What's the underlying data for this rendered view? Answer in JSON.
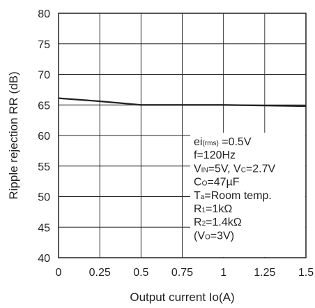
{
  "chart_data": {
    "type": "line",
    "title": "",
    "xlabel": "Output current Io(A)",
    "ylabel": "Ripple rejection RR (dB)",
    "xlim": [
      0,
      1.5
    ],
    "ylim": [
      40,
      80
    ],
    "x_ticks": [
      "0",
      "0.25",
      "0.5",
      "0.75",
      "1",
      "1.25",
      "1.5"
    ],
    "y_ticks": [
      "40",
      "45",
      "50",
      "55",
      "60",
      "65",
      "70",
      "75",
      "80"
    ],
    "grid": true,
    "legend": "none",
    "line_color": "#231f20",
    "series": [
      {
        "x": [
          0,
          0.25,
          0.5,
          0.75,
          1.0,
          1.25,
          1.5
        ],
        "y": [
          66.1,
          65.6,
          65.0,
          65.0,
          65.0,
          64.9,
          64.8
        ]
      }
    ],
    "annotations": [
      [
        {
          "t": "ei"
        },
        {
          "t": "(rms)",
          "sub": true
        },
        {
          "t": " =0.5V"
        }
      ],
      [
        {
          "t": "f=120Hz"
        }
      ],
      [
        {
          "t": "V"
        },
        {
          "t": "IN",
          "sub": true
        },
        {
          "t": "=5V, V"
        },
        {
          "t": "C",
          "sub": true
        },
        {
          "t": "=2.7V"
        }
      ],
      [
        {
          "t": "C"
        },
        {
          "t": "O",
          "sub": true
        },
        {
          "t": "=47µF"
        }
      ],
      [
        {
          "t": "T"
        },
        {
          "t": "a",
          "sub": true
        },
        {
          "t": "=Room temp."
        }
      ],
      [
        {
          "t": "R"
        },
        {
          "t": "1",
          "sub": true
        },
        {
          "t": "=1kΩ"
        }
      ],
      [
        {
          "t": "R"
        },
        {
          "t": "2",
          "sub": true
        },
        {
          "t": "=1.4kΩ"
        }
      ],
      [
        {
          "t": "(V"
        },
        {
          "t": "O",
          "sub": true
        },
        {
          "t": "=3V)"
        }
      ]
    ]
  }
}
